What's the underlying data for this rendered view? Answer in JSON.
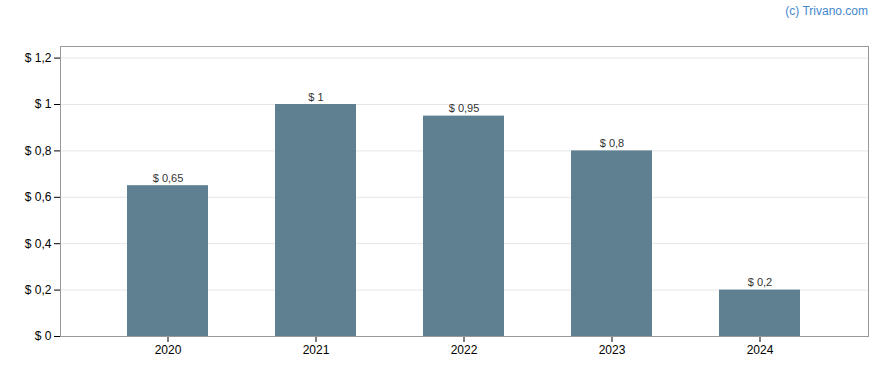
{
  "chart_data": {
    "type": "bar",
    "categories": [
      "2020",
      "2021",
      "2022",
      "2023",
      "2024"
    ],
    "values": [
      0.65,
      1.0,
      0.95,
      0.8,
      0.2
    ],
    "value_labels": [
      "$ 0,65",
      "$ 1",
      "$ 0,95",
      "$ 0,8",
      "$ 0,2"
    ],
    "data_labels": true,
    "color": "#5f8090",
    "ylim": [
      0,
      1.25
    ],
    "yticks": [
      {
        "value": 0,
        "label": "$ 0"
      },
      {
        "value": 0.2,
        "label": "$ 0,2"
      },
      {
        "value": 0.4,
        "label": "$ 0,4"
      },
      {
        "value": 0.6,
        "label": "$ 0,6"
      },
      {
        "value": 0.8,
        "label": "$ 0,8"
      },
      {
        "value": 1.0,
        "label": "$ 1"
      },
      {
        "value": 1.2,
        "label": "$ 1,2"
      }
    ],
    "grid": true,
    "annotations": [
      "(c) Trivano.com"
    ]
  }
}
